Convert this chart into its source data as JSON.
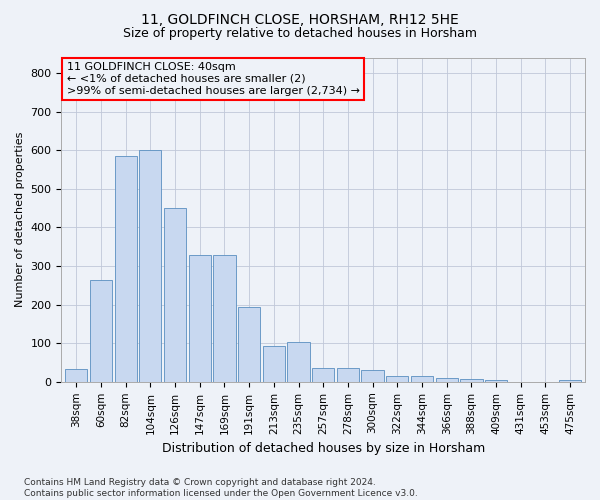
{
  "title1": "11, GOLDFINCH CLOSE, HORSHAM, RH12 5HE",
  "title2": "Size of property relative to detached houses in Horsham",
  "xlabel": "Distribution of detached houses by size in Horsham",
  "ylabel": "Number of detached properties",
  "categories": [
    "38sqm",
    "60sqm",
    "82sqm",
    "104sqm",
    "126sqm",
    "147sqm",
    "169sqm",
    "191sqm",
    "213sqm",
    "235sqm",
    "257sqm",
    "278sqm",
    "300sqm",
    "322sqm",
    "344sqm",
    "366sqm",
    "388sqm",
    "409sqm",
    "431sqm",
    "453sqm",
    "475sqm"
  ],
  "values": [
    32,
    265,
    585,
    600,
    450,
    328,
    328,
    195,
    93,
    102,
    35,
    35,
    30,
    15,
    14,
    11,
    8,
    5,
    0,
    0,
    5
  ],
  "bar_color": "#c8d8f0",
  "bar_edge_color": "#5a8fc0",
  "annotation_line1": "11 GOLDFINCH CLOSE: 40sqm",
  "annotation_line2": "← <1% of detached houses are smaller (2)",
  "annotation_line3": ">99% of semi-detached houses are larger (2,734) →",
  "annotation_box_color": "#ff0000",
  "ylim": [
    0,
    840
  ],
  "yticks": [
    0,
    100,
    200,
    300,
    400,
    500,
    600,
    700,
    800
  ],
  "grid_color": "#c0c8d8",
  "footnote": "Contains HM Land Registry data © Crown copyright and database right 2024.\nContains public sector information licensed under the Open Government Licence v3.0.",
  "background_color": "#eef2f8",
  "title1_fontsize": 10,
  "title2_fontsize": 9,
  "ylabel_fontsize": 8,
  "xlabel_fontsize": 9,
  "tick_fontsize": 8,
  "xtick_fontsize": 7.5,
  "ann_fontsize": 8,
  "footnote_fontsize": 6.5
}
